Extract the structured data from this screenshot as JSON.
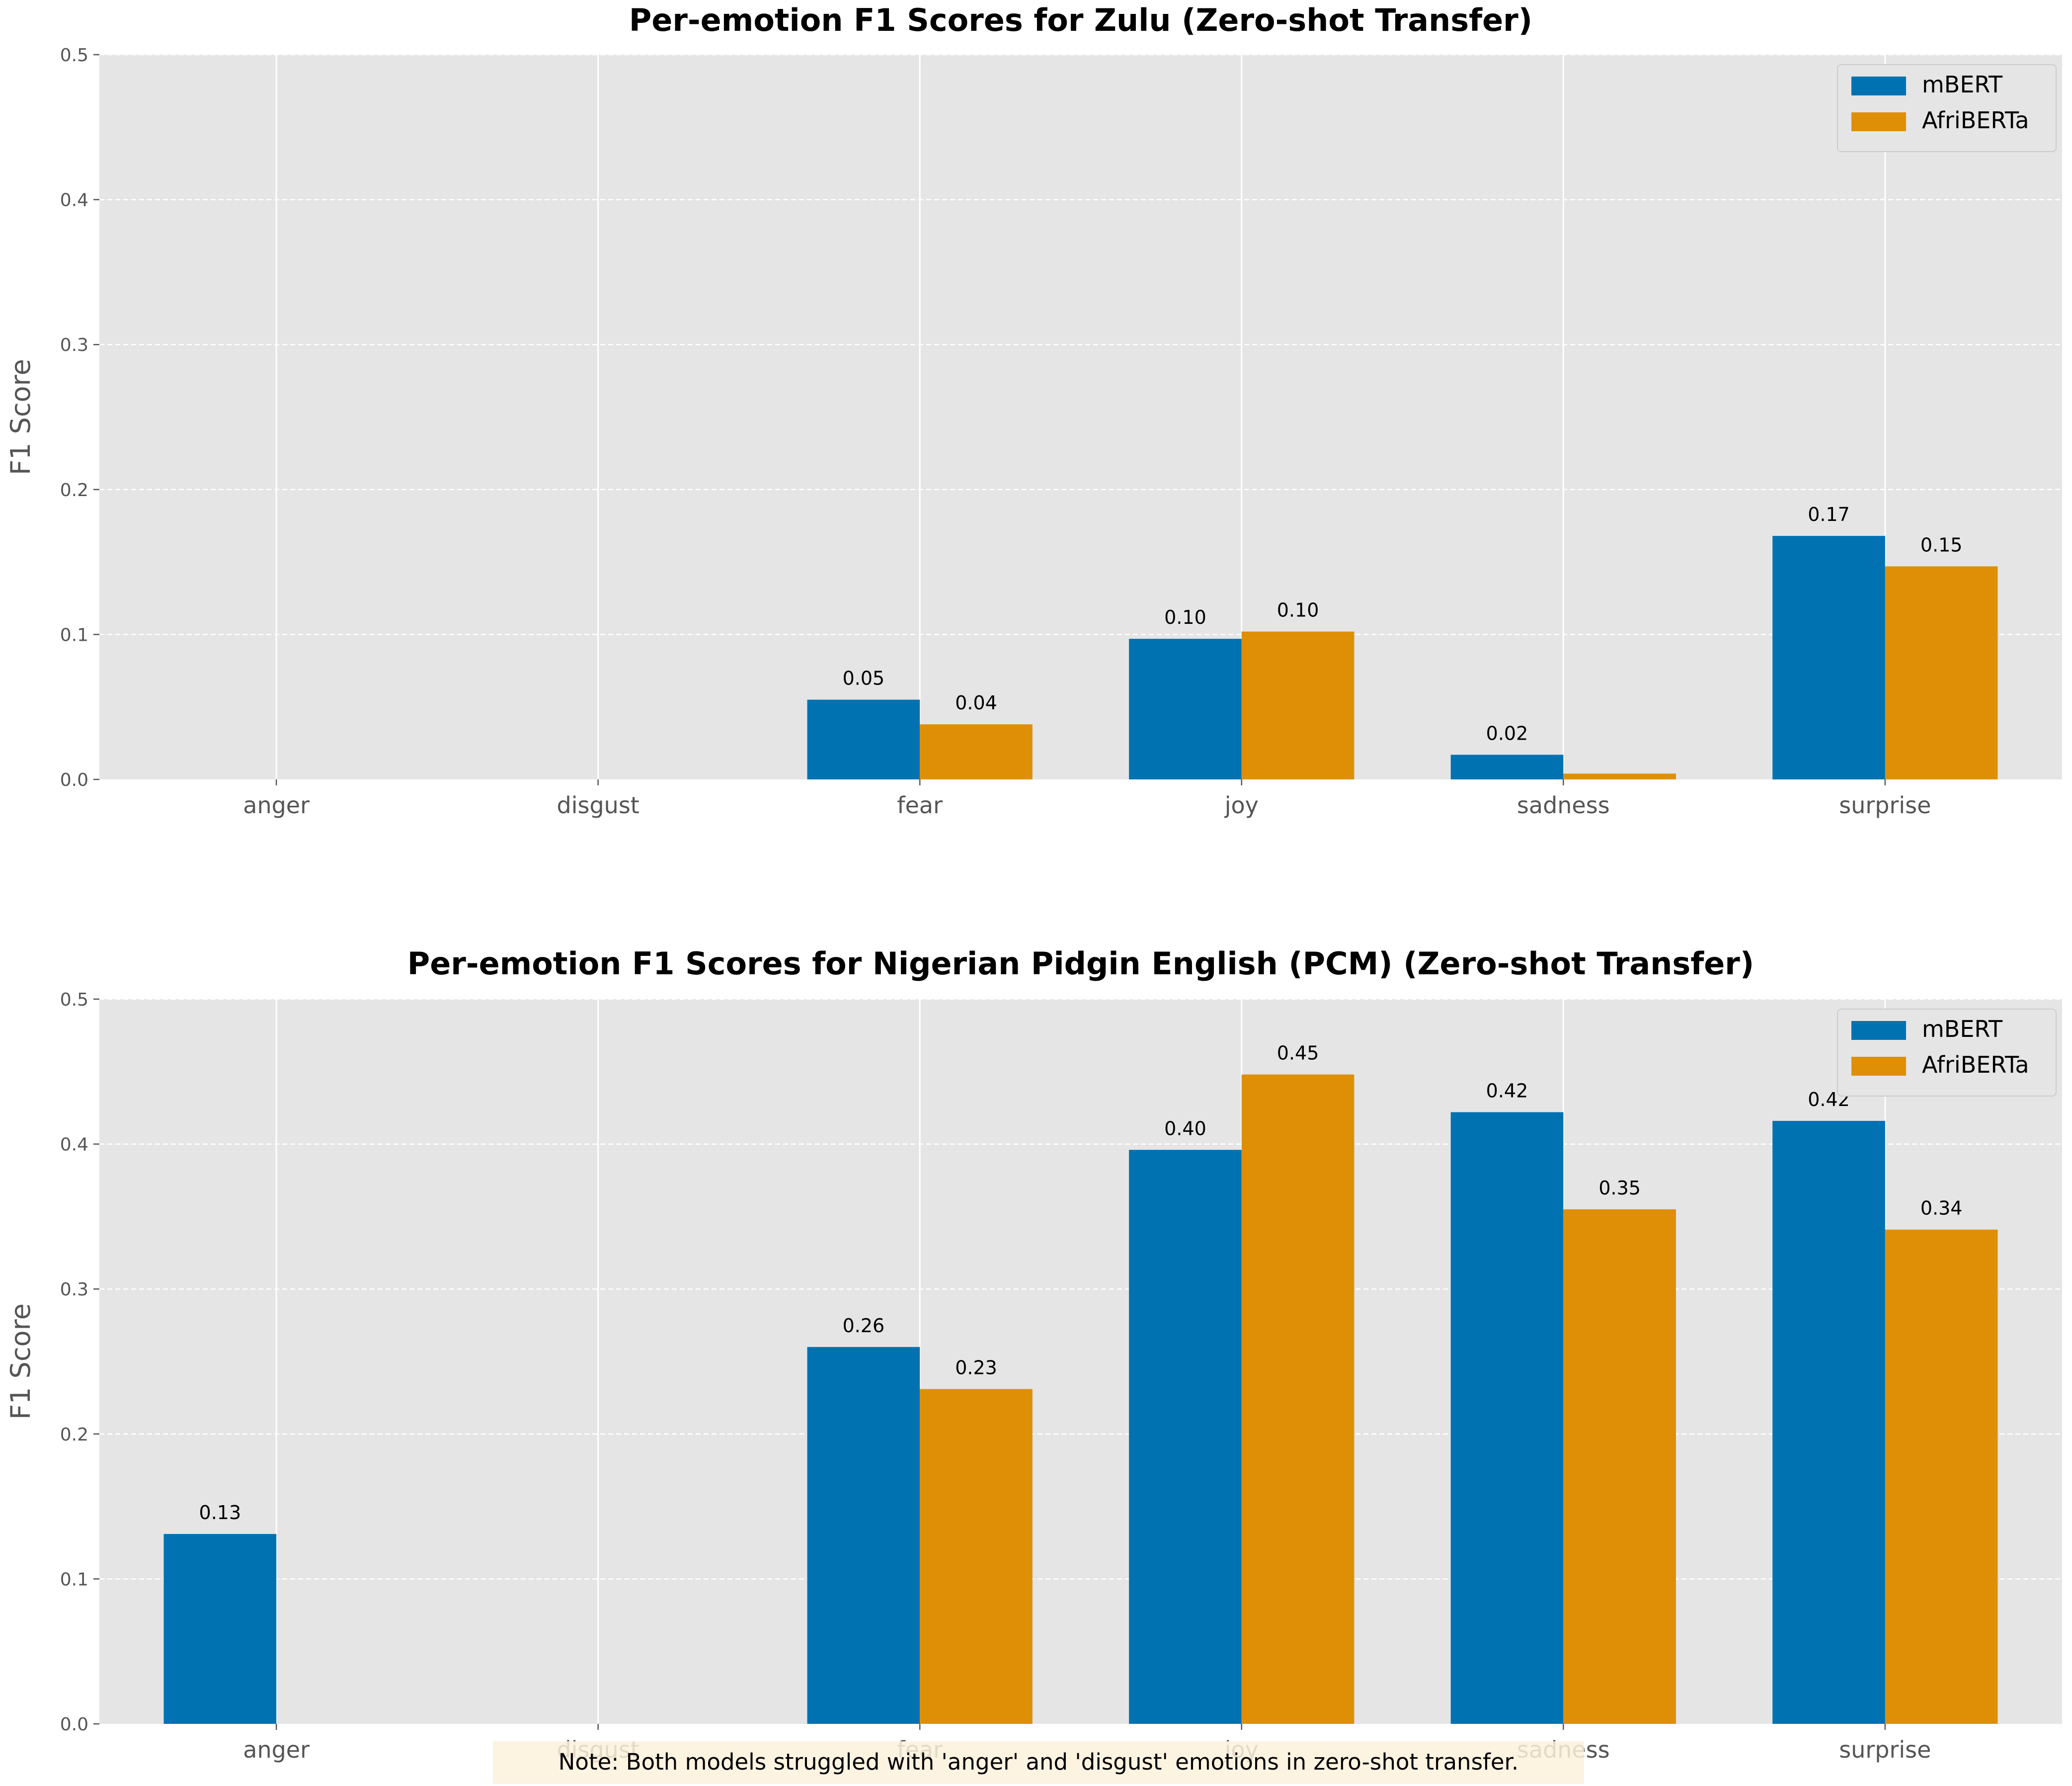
{
  "chart_data": [
    {
      "type": "bar",
      "title": "Per-emotion F1 Scores for Zulu (Zero-shot Transfer)",
      "xlabel": "",
      "ylabel": "F1 Score",
      "ylim": [
        0,
        0.5
      ],
      "yticks": [
        "0.0",
        "0.1",
        "0.2",
        "0.3",
        "0.4",
        "0.5"
      ],
      "categories": [
        "anger",
        "disgust",
        "fear",
        "joy",
        "sadness",
        "surprise"
      ],
      "series": [
        {
          "name": "mBERT",
          "color": "#0072b2",
          "values": [
            0,
            0,
            0.055,
            0.097,
            0.017,
            0.168
          ],
          "labels": [
            "",
            "",
            "0.05",
            "0.10",
            "0.02",
            "0.17"
          ]
        },
        {
          "name": "AfriBERTa",
          "color": "#de8f05",
          "values": [
            0,
            0,
            0.038,
            0.102,
            0.004,
            0.147
          ],
          "labels": [
            "",
            "",
            "0.04",
            "0.10",
            "",
            "0.15"
          ]
        }
      ],
      "legend": "top-right",
      "grid": true
    },
    {
      "type": "bar",
      "title": "Per-emotion F1 Scores for Nigerian Pidgin English (PCM) (Zero-shot Transfer)",
      "xlabel": "",
      "ylabel": "F1 Score",
      "ylim": [
        0,
        0.5
      ],
      "yticks": [
        "0.0",
        "0.1",
        "0.2",
        "0.3",
        "0.4",
        "0.5"
      ],
      "categories": [
        "anger",
        "disgust",
        "fear",
        "joy",
        "sadness",
        "surprise"
      ],
      "series": [
        {
          "name": "mBERT",
          "color": "#0072b2",
          "values": [
            0.131,
            0,
            0.26,
            0.396,
            0.422,
            0.416
          ],
          "labels": [
            "0.13",
            "",
            "0.26",
            "0.40",
            "0.42",
            "0.42"
          ]
        },
        {
          "name": "AfriBERTa",
          "color": "#de8f05",
          "values": [
            0,
            0,
            0.231,
            0.448,
            0.355,
            0.341
          ],
          "labels": [
            "",
            "",
            "0.23",
            "0.45",
            "0.35",
            "0.34"
          ]
        }
      ],
      "legend": "top-right",
      "grid": true
    }
  ],
  "note": "Note: Both models struggled with 'anger' and 'disgust' emotions in zero-shot transfer."
}
